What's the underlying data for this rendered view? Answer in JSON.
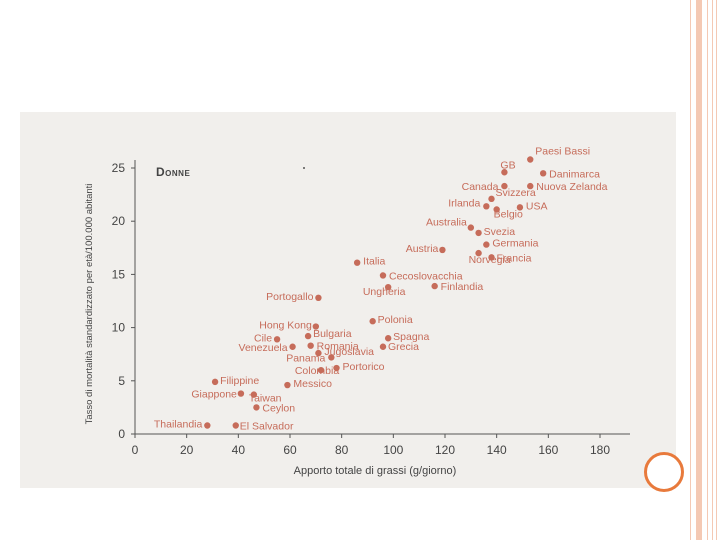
{
  "chart_data": {
    "type": "scatter",
    "title": "Donne",
    "xlabel": "Apporto totale di grassi (g/giorno)",
    "ylabel": "Tasso di mortalità standardizzato per età/100.000 abitanti",
    "xlim": [
      0,
      180
    ],
    "ylim": [
      0,
      25
    ],
    "x_ticks": [
      0,
      20,
      40,
      60,
      80,
      100,
      120,
      140,
      160,
      180
    ],
    "y_ticks": [
      0,
      5,
      10,
      15,
      20,
      25
    ],
    "grid": false,
    "legend": "none",
    "point_color": "#c66c5a",
    "points": [
      {
        "label": "Paesi Bassi",
        "x": 153,
        "y": 25.8
      },
      {
        "label": "GB",
        "x": 143,
        "y": 24.6
      },
      {
        "label": "Danimarca",
        "x": 158,
        "y": 24.5
      },
      {
        "label": "Canada",
        "x": 143,
        "y": 23.3
      },
      {
        "label": "Nuova Zelanda",
        "x": 153,
        "y": 23.3
      },
      {
        "label": "Svizzera",
        "x": 138,
        "y": 22.1
      },
      {
        "label": "Irlanda",
        "x": 136,
        "y": 21.4
      },
      {
        "label": "USA",
        "x": 149,
        "y": 21.3
      },
      {
        "label": "Belgio",
        "x": 140,
        "y": 21.1
      },
      {
        "label": "Australia",
        "x": 130,
        "y": 19.4
      },
      {
        "label": "Svezia",
        "x": 133,
        "y": 18.9
      },
      {
        "label": "Germania",
        "x": 136,
        "y": 17.8
      },
      {
        "label": "Austria",
        "x": 119,
        "y": 17.3
      },
      {
        "label": "Norvegia",
        "x": 133,
        "y": 17.0
      },
      {
        "label": "Francia",
        "x": 138,
        "y": 16.6
      },
      {
        "label": "Italia",
        "x": 86,
        "y": 16.1
      },
      {
        "label": "Cecoslovacchia",
        "x": 96,
        "y": 14.9
      },
      {
        "label": "Ungheria",
        "x": 98,
        "y": 13.8
      },
      {
        "label": "Finlandia",
        "x": 116,
        "y": 13.9
      },
      {
        "label": "Portogallo",
        "x": 71,
        "y": 12.8
      },
      {
        "label": "Polonia",
        "x": 92,
        "y": 10.6
      },
      {
        "label": "Hong Kong",
        "x": 70,
        "y": 10.1
      },
      {
        "label": "Bulgaria",
        "x": 67,
        "y": 9.2
      },
      {
        "label": "Spagna",
        "x": 98,
        "y": 9.0
      },
      {
        "label": "Cile",
        "x": 55,
        "y": 8.9
      },
      {
        "label": "Romania",
        "x": 68,
        "y": 8.3
      },
      {
        "label": "Grecia",
        "x": 96,
        "y": 8.2
      },
      {
        "label": "Venezuela",
        "x": 61,
        "y": 8.2
      },
      {
        "label": "Jugoslavia",
        "x": 71,
        "y": 7.6
      },
      {
        "label": "Portorico",
        "x": 78,
        "y": 6.2
      },
      {
        "label": "Panama",
        "x": 76,
        "y": 7.2
      },
      {
        "label": "Colombia",
        "x": 72,
        "y": 6.0
      },
      {
        "label": "Filippine",
        "x": 31,
        "y": 4.9
      },
      {
        "label": "Messico",
        "x": 59,
        "y": 4.6
      },
      {
        "label": "Giappone",
        "x": 41,
        "y": 3.8
      },
      {
        "label": "Taiwan",
        "x": 46,
        "y": 3.7
      },
      {
        "label": "Ceylon",
        "x": 47,
        "y": 2.5
      },
      {
        "label": "Thailandia",
        "x": 28,
        "y": 0.8
      },
      {
        "label": "El Salvador",
        "x": 39,
        "y": 0.8
      }
    ]
  }
}
